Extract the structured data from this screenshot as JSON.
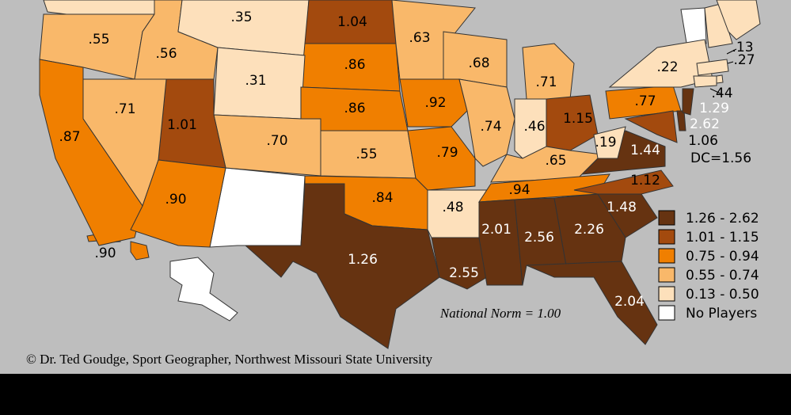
{
  "map": {
    "states": [
      {
        "label": ".55",
        "color": "#f9b86a"
      },
      {
        "label": ".56",
        "color": "#f9b86a"
      },
      {
        "label": ".35",
        "color": "#fde0bb"
      },
      {
        "label": "1.04",
        "color": "#a34a0e"
      },
      {
        "label": ".86",
        "color": "#f07f00"
      },
      {
        "label": ".31",
        "color": "#fde0bb"
      },
      {
        "label": ".86",
        "color": "#f07f00"
      },
      {
        "label": ".55",
        "color": "#f9b86a"
      },
      {
        "label": ".84",
        "color": "#f07f00"
      },
      {
        "label": "1.26",
        "color": "#663311"
      },
      {
        "label": ".70",
        "color": "#f9b86a"
      },
      {
        "label": "1.01",
        "color": "#a34a0e"
      },
      {
        "label": ".71",
        "color": "#f9b86a"
      },
      {
        "label": ".87",
        "color": "#f07f00"
      },
      {
        "label": ".90",
        "color": "#f07f00"
      },
      {
        "label": ".63",
        "color": "#f9b86a"
      },
      {
        "label": ".92",
        "color": "#f07f00"
      },
      {
        "label": ".79",
        "color": "#f07f00"
      },
      {
        "label": ".48",
        "color": "#fde0bb"
      },
      {
        "label": "2.55",
        "color": "#663311"
      },
      {
        "label": ".68",
        "color": "#f9b86a"
      },
      {
        "label": ".74",
        "color": "#f9b86a"
      },
      {
        "label": ".71",
        "color": "#f9b86a"
      },
      {
        "label": ".46",
        "color": "#fde0bb"
      },
      {
        "label": "1.15",
        "color": "#a34a0e"
      },
      {
        "label": ".65",
        "color": "#f9b86a"
      },
      {
        "label": ".94",
        "color": "#f07f00"
      },
      {
        "label": "2.01",
        "color": "#663311"
      },
      {
        "label": "2.56",
        "color": "#663311"
      },
      {
        "label": "2.26",
        "color": "#663311"
      },
      {
        "label": "2.04",
        "color": "#663311"
      },
      {
        "label": "1.48",
        "color": "#663311"
      },
      {
        "label": "1.12",
        "color": "#a34a0e"
      },
      {
        "label": "1.44",
        "color": "#663311"
      },
      {
        "label": ".19",
        "color": "#fde0bb"
      },
      {
        "label": ".77",
        "color": "#f07f00"
      },
      {
        "label": ".22",
        "color": "#fde0bb"
      },
      {
        "label": "1.06",
        "color": "#a34a0e"
      },
      {
        "label": "2.62",
        "color": "#663311"
      },
      {
        "label": "1.29",
        "color": "#663311"
      },
      {
        "label": ".13",
        "color": "#fde0bb"
      },
      {
        "label": ".27",
        "color": "#fde0bb"
      },
      {
        "label": ".44",
        "color": "#fde0bb"
      },
      {
        "label": ".90",
        "color": "#f07f00"
      }
    ],
    "dc": "DC=1.56",
    "legend": [
      {
        "label": "1.26 - 2.62",
        "color": "#663311"
      },
      {
        "label": "1.01 - 1.15",
        "color": "#a34a0e"
      },
      {
        "label": "0.75 - 0.94",
        "color": "#f07f00"
      },
      {
        "label": "0.55 - 0.74",
        "color": "#f9b86a"
      },
      {
        "label": "0.13 - 0.50",
        "color": "#fde0bb"
      },
      {
        "label": "No Players",
        "color": "#ffffff"
      }
    ],
    "norm": "National Norm = 1.00",
    "credit": "© Dr. Ted Goudge, Sport Geographer, Northwest Missouri State University"
  }
}
